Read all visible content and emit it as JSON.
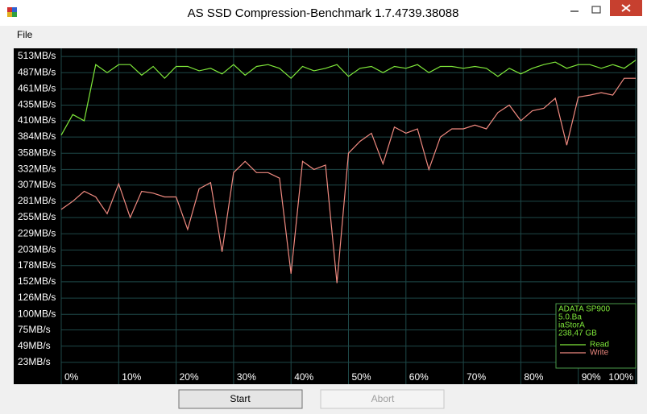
{
  "window": {
    "title": "AS SSD Compression-Benchmark 1.7.4739.38088"
  },
  "menu": [
    "File"
  ],
  "chart_data": {
    "type": "line",
    "x": [
      0,
      2,
      4,
      6,
      8,
      10,
      12,
      14,
      16,
      18,
      20,
      22,
      24,
      26,
      28,
      30,
      32,
      34,
      36,
      38,
      40,
      42,
      44,
      46,
      48,
      50,
      52,
      54,
      56,
      58,
      60,
      62,
      64,
      66,
      68,
      70,
      72,
      74,
      76,
      78,
      80,
      82,
      84,
      86,
      88,
      90,
      92,
      94,
      96,
      98,
      100
    ],
    "series": [
      {
        "name": "Read",
        "color": "#7fe83a",
        "values": [
          387,
          420,
          410,
          500,
          487,
          500,
          500,
          483,
          497,
          478,
          497,
          497,
          490,
          494,
          485,
          500,
          483,
          497,
          500,
          494,
          478,
          497,
          490,
          494,
          500,
          481,
          494,
          497,
          487,
          497,
          494,
          500,
          487,
          497,
          497,
          494,
          497,
          494,
          481,
          494,
          485,
          494,
          500,
          504,
          494,
          500,
          500,
          494,
          500,
          494,
          507
        ]
      },
      {
        "name": "Write",
        "color": "#f08a80",
        "values": [
          268,
          281,
          297,
          288,
          261,
          309,
          255,
          297,
          294,
          288,
          288,
          236,
          301,
          311,
          200,
          327,
          345,
          327,
          327,
          318,
          165,
          345,
          332,
          339,
          150,
          358,
          377,
          390,
          341,
          400,
          390,
          397,
          332,
          384,
          397,
          397,
          403,
          397,
          423,
          435,
          410,
          426,
          430,
          446,
          371,
          448,
          451,
          455,
          451,
          478,
          478
        ]
      }
    ],
    "xlim": [
      0,
      100
    ],
    "xticks": [
      {
        "value": 0,
        "label": "0%"
      },
      {
        "value": 10,
        "label": "10%"
      },
      {
        "value": 20,
        "label": "20%"
      },
      {
        "value": 30,
        "label": "30%"
      },
      {
        "value": 40,
        "label": "40%"
      },
      {
        "value": 50,
        "label": "50%"
      },
      {
        "value": 60,
        "label": "60%"
      },
      {
        "value": 70,
        "label": "70%"
      },
      {
        "value": 80,
        "label": "80%"
      },
      {
        "value": 90,
        "label": "90%"
      },
      {
        "value": 100,
        "label": "100%"
      }
    ],
    "ylim": [
      10,
      526
    ],
    "yticks": [
      {
        "value": 23,
        "label": "23MB/s"
      },
      {
        "value": 49,
        "label": "49MB/s"
      },
      {
        "value": 75,
        "label": "75MB/s"
      },
      {
        "value": 100,
        "label": "100MB/s"
      },
      {
        "value": 126,
        "label": "126MB/s"
      },
      {
        "value": 152,
        "label": "152MB/s"
      },
      {
        "value": 178,
        "label": "178MB/s"
      },
      {
        "value": 203,
        "label": "203MB/s"
      },
      {
        "value": 229,
        "label": "229MB/s"
      },
      {
        "value": 255,
        "label": "255MB/s"
      },
      {
        "value": 281,
        "label": "281MB/s"
      },
      {
        "value": 307,
        "label": "307MB/s"
      },
      {
        "value": 332,
        "label": "332MB/s"
      },
      {
        "value": 358,
        "label": "358MB/s"
      },
      {
        "value": 384,
        "label": "384MB/s"
      },
      {
        "value": 410,
        "label": "410MB/s"
      },
      {
        "value": 435,
        "label": "435MB/s"
      },
      {
        "value": 461,
        "label": "461MB/s"
      },
      {
        "value": 487,
        "label": "487MB/s"
      },
      {
        "value": 513,
        "label": "513MB/s"
      }
    ],
    "grid": true,
    "legend": "lower right",
    "info": [
      "ADATA SP900",
      "5.0.Ba",
      "iaStorA",
      "238,47 GB"
    ]
  },
  "buttons": [
    "Start",
    "Abort"
  ]
}
